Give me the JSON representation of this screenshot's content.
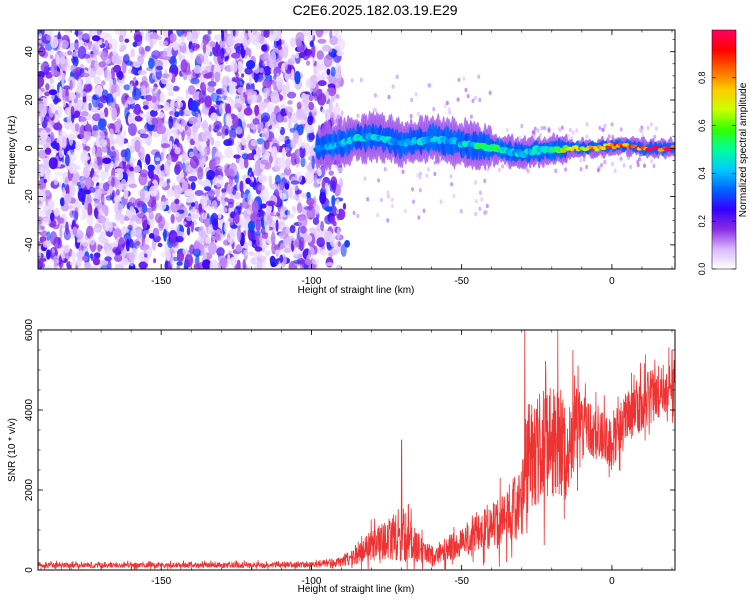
{
  "title": "C2E6.2025.182.03.19.E29",
  "chart_data": [
    {
      "type": "heatmap",
      "name": "spectrogram",
      "xlabel": "Height of straight line (km)",
      "ylabel": "Frequency (Hz)",
      "xlim": [
        -191,
        21
      ],
      "ylim": [
        -50,
        49
      ],
      "xticks": [
        -150,
        -100,
        -50,
        0
      ],
      "yticks": [
        -40,
        -20,
        0,
        20,
        40
      ],
      "colorbar": {
        "label": "Normalized spectral amplitude",
        "range": [
          0,
          1
        ],
        "ticks": [
          "0.0",
          "0.2",
          "0.4",
          "0.6",
          "0.8"
        ],
        "colors": [
          "#ffffff",
          "#d9b8ff",
          "#8a2be2",
          "#3300ff",
          "#0066ff",
          "#00ccff",
          "#00ff99",
          "#33ff00",
          "#ccff00",
          "#ffcc00",
          "#ff6600",
          "#ff0000",
          "#ff0066"
        ]
      },
      "noise_region_x": [
        -191,
        -90
      ],
      "signal_track": [
        {
          "x": -98,
          "y": 0,
          "amp": 0.35
        },
        {
          "x": -90,
          "y": 2,
          "amp": 0.4
        },
        {
          "x": -85,
          "y": 4,
          "amp": 0.45
        },
        {
          "x": -80,
          "y": 5,
          "amp": 0.45
        },
        {
          "x": -75,
          "y": 4,
          "amp": 0.45
        },
        {
          "x": -70,
          "y": 2,
          "amp": 0.4
        },
        {
          "x": -65,
          "y": 3,
          "amp": 0.42
        },
        {
          "x": -60,
          "y": 4,
          "amp": 0.45
        },
        {
          "x": -55,
          "y": 3,
          "amp": 0.42
        },
        {
          "x": -50,
          "y": 2,
          "amp": 0.45
        },
        {
          "x": -45,
          "y": 1,
          "amp": 0.5
        },
        {
          "x": -40,
          "y": 0,
          "amp": 0.55
        },
        {
          "x": -35,
          "y": -1,
          "amp": 0.5
        },
        {
          "x": -30,
          "y": -2,
          "amp": 0.45
        },
        {
          "x": -25,
          "y": -1,
          "amp": 0.5
        },
        {
          "x": -20,
          "y": -1,
          "amp": 0.55
        },
        {
          "x": -15,
          "y": 0,
          "amp": 0.75
        },
        {
          "x": -10,
          "y": 0,
          "amp": 0.8
        },
        {
          "x": -5,
          "y": 0,
          "amp": 0.85
        },
        {
          "x": 0,
          "y": 1,
          "amp": 0.9
        },
        {
          "x": 5,
          "y": 1,
          "amp": 0.95
        },
        {
          "x": 10,
          "y": 0,
          "amp": 0.95
        },
        {
          "x": 15,
          "y": 0,
          "amp": 0.95
        },
        {
          "x": 21,
          "y": 0,
          "amp": 0.95
        }
      ]
    },
    {
      "type": "line",
      "name": "snr",
      "xlabel": "Height of straight line (km)",
      "ylabel": "SNR (10 * v/v)",
      "xlim": [
        -191,
        21
      ],
      "ylim": [
        0,
        6000
      ],
      "xticks": [
        -150,
        -100,
        -50,
        0
      ],
      "yticks": [
        0,
        2000,
        4000,
        6000
      ],
      "color": "#ee3333",
      "envelope": [
        {
          "x": -191,
          "mean": 120,
          "spread": 80
        },
        {
          "x": -150,
          "mean": 120,
          "spread": 80
        },
        {
          "x": -100,
          "mean": 130,
          "spread": 90
        },
        {
          "x": -90,
          "mean": 200,
          "spread": 150
        },
        {
          "x": -85,
          "mean": 400,
          "spread": 300
        },
        {
          "x": -80,
          "mean": 600,
          "spread": 500
        },
        {
          "x": -75,
          "mean": 750,
          "spread": 600
        },
        {
          "x": -70,
          "mean": 900,
          "spread": 900
        },
        {
          "x": -65,
          "mean": 600,
          "spread": 500
        },
        {
          "x": -60,
          "mean": 350,
          "spread": 300
        },
        {
          "x": -55,
          "mean": 500,
          "spread": 400
        },
        {
          "x": -50,
          "mean": 700,
          "spread": 500
        },
        {
          "x": -45,
          "mean": 900,
          "spread": 600
        },
        {
          "x": -40,
          "mean": 1100,
          "spread": 700
        },
        {
          "x": -35,
          "mean": 1300,
          "spread": 900
        },
        {
          "x": -30,
          "mean": 1800,
          "spread": 1200
        },
        {
          "x": -27,
          "mean": 3200,
          "spread": 2000
        },
        {
          "x": -25,
          "mean": 3000,
          "spread": 1800
        },
        {
          "x": -20,
          "mean": 3200,
          "spread": 1800
        },
        {
          "x": -15,
          "mean": 3000,
          "spread": 1500
        },
        {
          "x": -12,
          "mean": 3600,
          "spread": 1200
        },
        {
          "x": -8,
          "mean": 3500,
          "spread": 900
        },
        {
          "x": -3,
          "mean": 3300,
          "spread": 800
        },
        {
          "x": 0,
          "mean": 3200,
          "spread": 800
        },
        {
          "x": 5,
          "mean": 3800,
          "spread": 900
        },
        {
          "x": 10,
          "mean": 4200,
          "spread": 900
        },
        {
          "x": 15,
          "mean": 4400,
          "spread": 800
        },
        {
          "x": 21,
          "mean": 4700,
          "spread": 800
        }
      ],
      "peaks": [
        {
          "x": -70,
          "y": 3250
        },
        {
          "x": -29,
          "y": 6000
        },
        {
          "x": -18,
          "y": 6000
        },
        {
          "x": -13,
          "y": 5500
        },
        {
          "x": 20,
          "y": 5500
        }
      ]
    }
  ]
}
